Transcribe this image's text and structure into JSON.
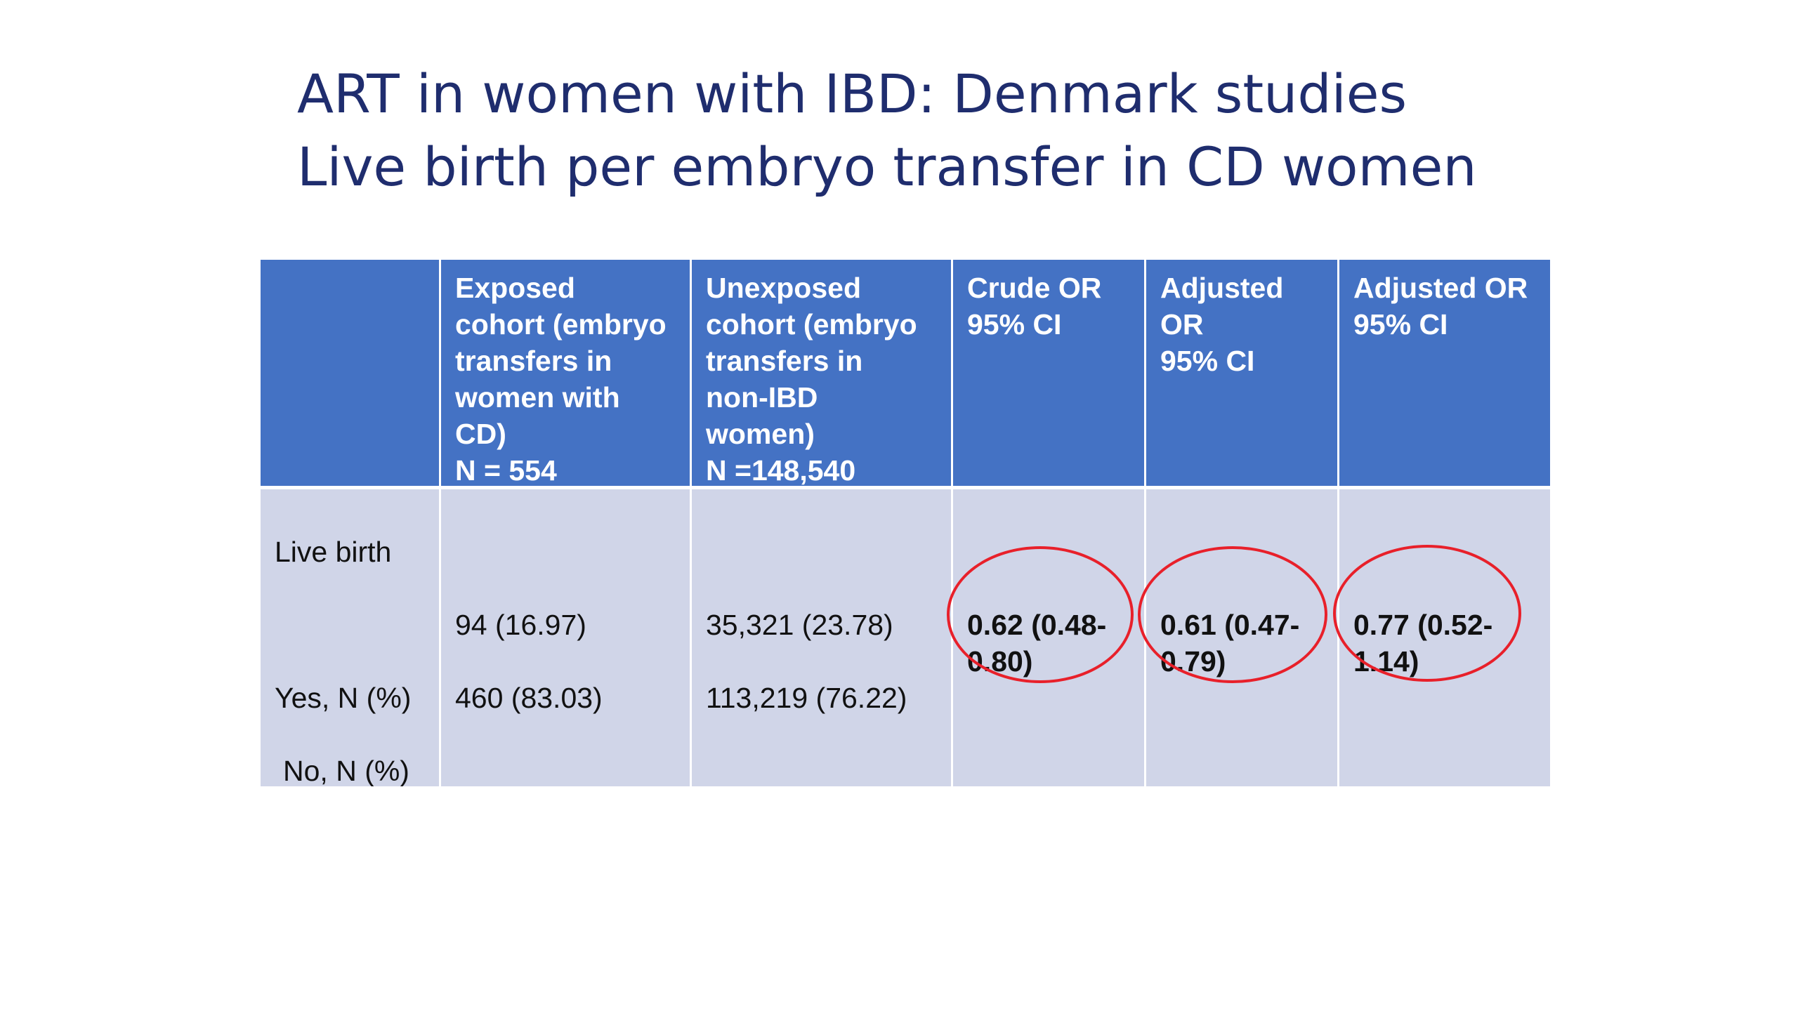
{
  "slide": {
    "title_line1": "ART in women with IBD: Denmark studies",
    "title_line2": "Live birth per embryo transfer in CD women"
  },
  "table": {
    "headers": [
      "",
      "Exposed\ncohort (embryo\ntransfers in\nwomen with\nCD)\nN = 554",
      "Unexposed\ncohort (embryo\ntransfers in\nnon-IBD\nwomen)\nN =148,540",
      "Crude OR\n95% CI",
      "Adjusted\nOR\n95% CI",
      "Adjusted OR\n95% CI"
    ],
    "row": {
      "label": "Live birth",
      "label_yes": "Yes, N (%)",
      "label_no": "No, N (%)",
      "exposed_yes": "94 (16.97)",
      "exposed_no": "460 (83.03)",
      "unexposed_yes": "35,321 (23.78)",
      "unexposed_no": "113,219 (76.22)",
      "crude_or": "0.62 (0.48-\n0.80)",
      "adjusted_or_1": "0.61 (0.47-\n0.79)",
      "adjusted_or_2": "0.77 (0.52-\n1.14)"
    }
  },
  "colors": {
    "title": "#1f2d6e",
    "header_bg": "#4472c4",
    "body_bg": "#d0d5e8",
    "highlight_ring": "#e8202a"
  }
}
